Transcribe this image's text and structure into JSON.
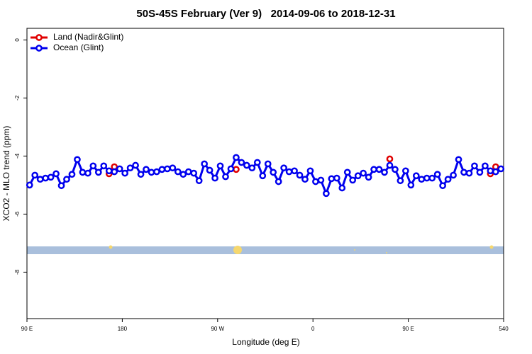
{
  "chart_data": {
    "type": "line",
    "title": "50S-45S February (Ver 9)   2014-09-06 to 2018-12-31",
    "x_label": "Longitude (deg E)",
    "y_label": "XCO2 - MLO trend (ppm)",
    "xlim": [
      90,
      540
    ],
    "ylim": [
      -9.6,
      0.4
    ],
    "xticks": [
      {
        "value": 90,
        "label": "90 E"
      },
      180,
      {
        "value": 270,
        "label": "90 W"
      },
      {
        "value": 360,
        "label": "0"
      },
      {
        "value": 450,
        "label": "90 E"
      },
      540
    ],
    "yticks": [
      0,
      -2,
      -4,
      -6,
      -8
    ],
    "legend": "top-left",
    "series": [
      {
        "name": "Land (Nadir&Glint)",
        "color": "#e00000",
        "x": [
          167.5,
          172.5,
          287.5,
          432.5,
          527.5,
          532.5
        ],
        "values": [
          -4.61,
          -4.37,
          -4.46,
          -4.1,
          -4.61,
          -4.37
        ]
      },
      {
        "name": "Ocean (Glint)",
        "color": "#0000ee",
        "x": [
          92.5,
          97.5,
          102.5,
          107.5,
          112.5,
          117.5,
          122.5,
          127.5,
          132.5,
          137.5,
          142.5,
          147.5,
          152.5,
          157.5,
          162.5,
          167.5,
          172.5,
          177.5,
          182.5,
          187.5,
          192.5,
          197.5,
          202.5,
          207.5,
          212.5,
          217.5,
          222.5,
          227.5,
          232.5,
          237.5,
          242.5,
          247.5,
          252.5,
          257.5,
          262.5,
          267.5,
          272.5,
          277.5,
          282.5,
          287.5,
          292.5,
          297.5,
          302.5,
          307.5,
          312.5,
          317.5,
          322.5,
          327.5,
          332.5,
          337.5,
          342.5,
          347.5,
          352.5,
          357.5,
          362.5,
          367.5,
          372.5,
          377.5,
          382.5,
          387.5,
          392.5,
          397.5,
          402.5,
          407.5,
          412.5,
          417.5,
          422.5,
          427.5,
          432.5,
          437.5,
          442.5,
          447.5,
          452.5,
          457.5,
          462.5,
          467.5,
          472.5,
          477.5,
          482.5,
          487.5,
          492.5,
          497.5,
          502.5,
          507.5,
          512.5,
          517.5,
          522.5,
          527.5,
          532.5,
          537.5
        ],
        "values": [
          -5.0,
          -4.66,
          -4.8,
          -4.76,
          -4.73,
          -4.61,
          -5.02,
          -4.8,
          -4.63,
          -4.12,
          -4.56,
          -4.59,
          -4.34,
          -4.56,
          -4.34,
          -4.51,
          -4.54,
          -4.44,
          -4.59,
          -4.41,
          -4.32,
          -4.63,
          -4.46,
          -4.56,
          -4.54,
          -4.46,
          -4.44,
          -4.41,
          -4.54,
          -4.63,
          -4.54,
          -4.59,
          -4.85,
          -4.27,
          -4.49,
          -4.76,
          -4.34,
          -4.71,
          -4.44,
          -4.05,
          -4.22,
          -4.32,
          -4.41,
          -4.22,
          -4.68,
          -4.27,
          -4.56,
          -4.88,
          -4.41,
          -4.54,
          -4.51,
          -4.66,
          -4.8,
          -4.51,
          -4.88,
          -4.83,
          -5.29,
          -4.78,
          -4.76,
          -5.1,
          -4.56,
          -4.83,
          -4.68,
          -4.59,
          -4.73,
          -4.46,
          -4.46,
          -4.56,
          -4.32,
          -4.46,
          -4.85,
          -4.51,
          -5.0,
          -4.68,
          -4.8,
          -4.76,
          -4.76,
          -4.63,
          -5.02,
          -4.8,
          -4.66,
          -4.12,
          -4.56,
          -4.59,
          -4.34,
          -4.56,
          -4.34,
          -4.51,
          -4.54,
          -4.44
        ]
      }
    ]
  }
}
